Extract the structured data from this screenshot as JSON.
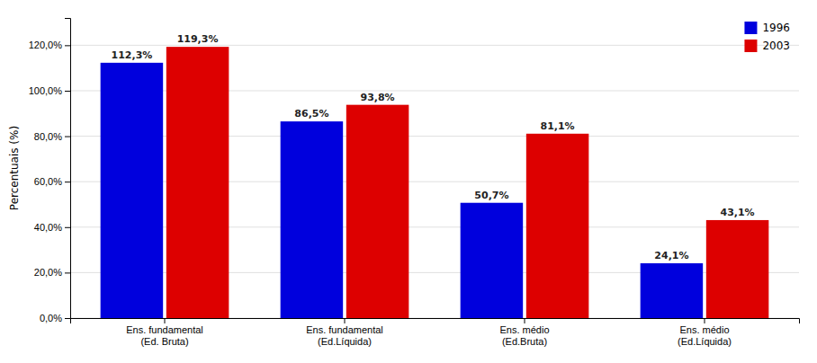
{
  "chart_data": {
    "type": "bar",
    "categories": [
      "Ens. fundamental\n(Ed. Bruta)",
      "Ens. fundamental\n(Ed.Líquida)",
      "Ens. médio\n(Ed.Bruta)",
      "Ens. médio\n(Ed.Líquida)"
    ],
    "series": [
      {
        "name": "1996",
        "color": "#0000DD",
        "values": [
          112.3,
          86.5,
          50.7,
          24.1
        ],
        "value_labels": [
          "112,3%",
          "86,5%",
          "50,7%",
          "24,1%"
        ]
      },
      {
        "name": "2003",
        "color": "#DD0000",
        "values": [
          119.3,
          93.8,
          81.1,
          43.1
        ],
        "value_labels": [
          "119,3%",
          "93,8%",
          "81,1%",
          "43,1%"
        ]
      }
    ],
    "ylabel": "Percentuais (%)",
    "ylim": [
      0,
      132
    ],
    "yticks": [
      {
        "value": 0,
        "label": "0,0%"
      },
      {
        "value": 20,
        "label": "20,0%"
      },
      {
        "value": 40,
        "label": "40,0%"
      },
      {
        "value": 60,
        "label": "60,0%"
      },
      {
        "value": 80,
        "label": "80,0%"
      },
      {
        "value": 100,
        "label": "100,0%"
      },
      {
        "value": 120,
        "label": "120,0%"
      }
    ],
    "grid": true,
    "legend": "upper right",
    "data_labels": true
  }
}
